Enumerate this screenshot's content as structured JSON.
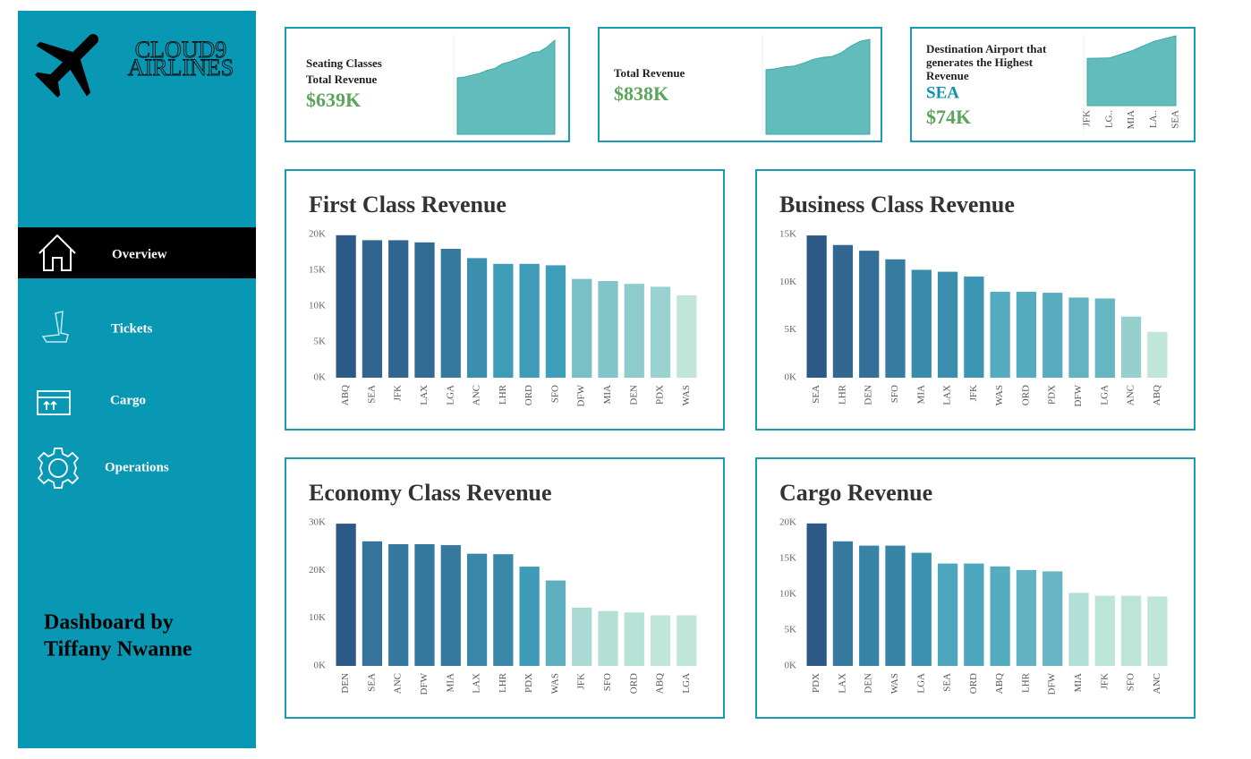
{
  "sidebar": {
    "logo_lines": [
      "CLOUD9",
      "AIRLINES"
    ],
    "nav": [
      {
        "label": "Overview",
        "active": true
      },
      {
        "label": "Tickets",
        "active": false
      },
      {
        "label": "Cargo",
        "active": false
      },
      {
        "label": "Operations",
        "active": false
      }
    ],
    "footer_lines": [
      "Dashboard by",
      "Tiffany Nwanne"
    ]
  },
  "kpis": [
    {
      "title_lines": [
        "Seating Classes",
        "Total Revenue"
      ],
      "value": "$639K",
      "sparkline": {
        "type": "area",
        "color": "#62bcbc",
        "values": [
          60,
          61,
          63,
          65,
          68,
          70,
          75,
          77,
          80,
          83,
          87,
          88,
          93,
          100
        ]
      }
    },
    {
      "title_lines": [
        "Total Revenue"
      ],
      "value": "$838K",
      "sparkline": {
        "type": "area",
        "color": "#62bcbc",
        "values": [
          68,
          69,
          71,
          72,
          75,
          79,
          81,
          82,
          86,
          93,
          98,
          100
        ]
      }
    },
    {
      "title_lines": [
        "Destination Airport that",
        "generates the Highest",
        "Revenue"
      ],
      "highlight": "SEA",
      "value": "$74K",
      "sparkline": {
        "type": "area",
        "color": "#62bcbc",
        "categories": [
          "JFK",
          "LG..",
          "MIA",
          "LA..",
          "SEA"
        ],
        "values": [
          50000,
          50500,
          58000,
          68000,
          74000
        ]
      }
    }
  ],
  "chart_data": [
    {
      "type": "bar",
      "title": "First Class Revenue",
      "categories": [
        "ABQ",
        "SEA",
        "JFK",
        "LAX",
        "LGA",
        "ANC",
        "LHR",
        "ORD",
        "SFO",
        "DFW",
        "MIA",
        "DEN",
        "PDX",
        "WAS"
      ],
      "values": [
        19900,
        19200,
        19200,
        18900,
        18000,
        16700,
        15900,
        15900,
        15700,
        13800,
        13500,
        13100,
        12700,
        11500
      ],
      "ylim": [
        0,
        20000
      ],
      "yticks": [
        {
          "value": 0,
          "label": "0K"
        },
        {
          "value": 5000,
          "label": "5K"
        },
        {
          "value": 10000,
          "label": "10K"
        },
        {
          "value": 15000,
          "label": "15K"
        },
        {
          "value": 20000,
          "label": "20K"
        }
      ],
      "color_scale": [
        "#bfe6d8",
        "#3f9fba",
        "#2d5986"
      ]
    },
    {
      "type": "bar",
      "title": "Business Class Revenue",
      "categories": [
        "SEA",
        "LHR",
        "DEN",
        "SFO",
        "MIA",
        "LAX",
        "JFK",
        "WAS",
        "ORD",
        "PDX",
        "DFW",
        "LGA",
        "ANC",
        "ABQ"
      ],
      "values": [
        14900,
        13900,
        13300,
        12400,
        11300,
        11100,
        10600,
        9000,
        9000,
        8900,
        8400,
        8300,
        6400,
        4800
      ],
      "ylim": [
        0,
        15000
      ],
      "yticks": [
        {
          "value": 0,
          "label": "0K"
        },
        {
          "value": 5000,
          "label": "5K"
        },
        {
          "value": 10000,
          "label": "10K"
        },
        {
          "value": 15000,
          "label": "15K"
        }
      ],
      "color_scale": [
        "#bfe6d8",
        "#3f9fba",
        "#2d5986"
      ]
    },
    {
      "type": "bar",
      "title": "Economy Class Revenue",
      "categories": [
        "DEN",
        "SEA",
        "ANC",
        "DFW",
        "MIA",
        "LAX",
        "LHR",
        "PDX",
        "WAS",
        "JFK",
        "SFO",
        "ORD",
        "ABQ",
        "LGA"
      ],
      "values": [
        29800,
        26100,
        25500,
        25500,
        25300,
        23500,
        23400,
        20800,
        17900,
        12200,
        11500,
        11200,
        10600,
        10600
      ],
      "ylim": [
        0,
        30000
      ],
      "yticks": [
        {
          "value": 0,
          "label": "0K"
        },
        {
          "value": 10000,
          "label": "10K"
        },
        {
          "value": 20000,
          "label": "20K"
        },
        {
          "value": 30000,
          "label": "30K"
        }
      ],
      "color_scale": [
        "#bfe6d8",
        "#3f9fba",
        "#2d5986"
      ]
    },
    {
      "type": "bar",
      "title": "Cargo Revenue",
      "categories": [
        "PDX",
        "LAX",
        "DEN",
        "WAS",
        "LGA",
        "SEA",
        "ORD",
        "ABQ",
        "LHR",
        "DFW",
        "MIA",
        "JFK",
        "SFO",
        "ANC"
      ],
      "values": [
        19900,
        17400,
        16800,
        16800,
        15800,
        14300,
        14300,
        13900,
        13400,
        13200,
        10200,
        9800,
        9800,
        9700
      ],
      "ylim": [
        0,
        20000
      ],
      "yticks": [
        {
          "value": 0,
          "label": "0K"
        },
        {
          "value": 5000,
          "label": "5K"
        },
        {
          "value": 10000,
          "label": "10K"
        },
        {
          "value": 15000,
          "label": "15K"
        },
        {
          "value": 20000,
          "label": "20K"
        }
      ],
      "color_scale": [
        "#bfe6d8",
        "#3f9fba",
        "#2d5986"
      ]
    }
  ]
}
